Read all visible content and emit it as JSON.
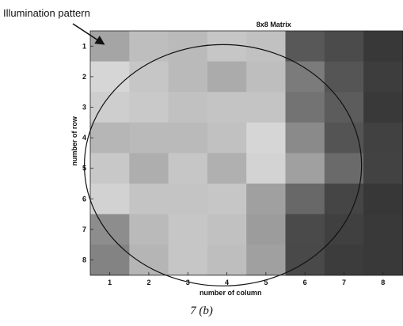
{
  "annotation": {
    "text": "Illumination pattern"
  },
  "caption": "7 (b)",
  "chart_data": {
    "type": "heatmap",
    "title": "8x8 Matrix",
    "xlabel": "number of column",
    "ylabel": "number of row",
    "x_ticks": [
      "1",
      "2",
      "3",
      "4",
      "5",
      "6",
      "7",
      "8"
    ],
    "y_ticks": [
      "1",
      "2",
      "3",
      "4",
      "5",
      "6",
      "7",
      "8"
    ],
    "colormap": "gray",
    "grid": false,
    "values": [
      [
        165,
        190,
        186,
        198,
        193,
        88,
        75,
        56
      ],
      [
        214,
        198,
        186,
        171,
        190,
        123,
        85,
        61
      ],
      [
        206,
        201,
        193,
        196,
        196,
        115,
        92,
        57
      ],
      [
        182,
        186,
        186,
        193,
        214,
        138,
        84,
        65
      ],
      [
        200,
        174,
        198,
        176,
        211,
        160,
        106,
        66
      ],
      [
        210,
        196,
        196,
        198,
        160,
        104,
        69,
        55
      ],
      [
        141,
        186,
        198,
        193,
        156,
        74,
        64,
        57
      ],
      [
        131,
        181,
        198,
        190,
        160,
        73,
        60,
        57
      ]
    ],
    "circle_overlay": {
      "center": [
        3.4,
        4.4
      ],
      "radius_x": 3.55,
      "radius_y": 3.95
    }
  }
}
